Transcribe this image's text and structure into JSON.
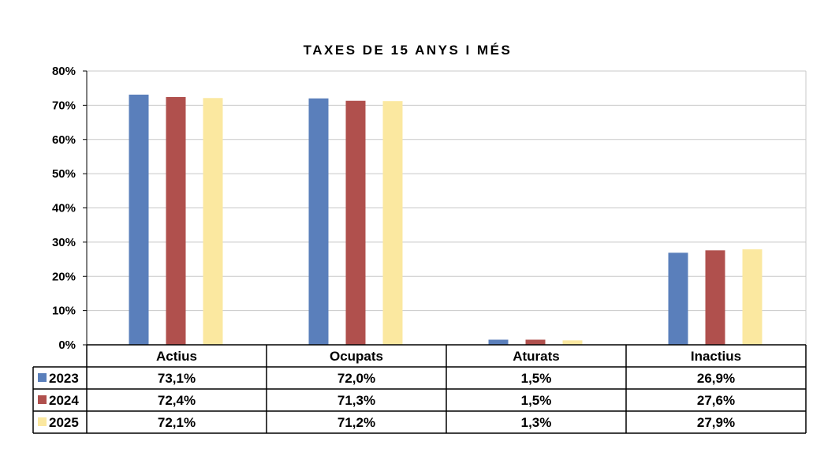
{
  "chart_data": {
    "type": "bar",
    "title": "TAXES DE 15 ANYS I MÉS",
    "categories": [
      "Actius",
      "Ocupats",
      "Aturats",
      "Inactius"
    ],
    "series": [
      {
        "name": "2023",
        "color": "#5a7fbb",
        "values": [
          73.1,
          72.0,
          1.5,
          26.9
        ],
        "labels": [
          "73,1%",
          "72,0%",
          "1,5%",
          "26,9%"
        ]
      },
      {
        "name": "2024",
        "color": "#b0504d",
        "values": [
          72.4,
          71.3,
          1.5,
          27.6
        ],
        "labels": [
          "72,4%",
          "71,3%",
          "1,5%",
          "27,6%"
        ]
      },
      {
        "name": "2025",
        "color": "#fbe8a0",
        "values": [
          72.1,
          71.2,
          1.3,
          27.9
        ],
        "labels": [
          "72,1%",
          "71,2%",
          "1,3%",
          "27,9%"
        ]
      }
    ],
    "ylim": [
      0,
      80
    ],
    "yticks": [
      "0%",
      "10%",
      "20%",
      "30%",
      "40%",
      "50%",
      "60%",
      "70%",
      "80%"
    ],
    "grid": true,
    "legend": "data-table"
  }
}
